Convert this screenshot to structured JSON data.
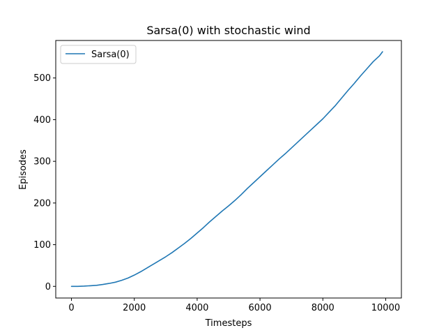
{
  "chart_data": {
    "type": "line",
    "title": "Sarsa(0) with stochastic wind",
    "xlabel": "Timesteps",
    "ylabel": "Episodes",
    "xlim": [
      -500,
      10500
    ],
    "ylim": [
      -28,
      590
    ],
    "xticks": [
      0,
      2000,
      4000,
      6000,
      8000,
      10000
    ],
    "yticks": [
      0,
      100,
      200,
      300,
      400,
      500
    ],
    "grid": false,
    "legend_position": "upper-left",
    "series": [
      {
        "name": "Sarsa(0)",
        "color": "#1f77b4",
        "x": [
          0,
          200,
          400,
          600,
          800,
          1000,
          1200,
          1400,
          1600,
          1800,
          2000,
          2200,
          2400,
          2600,
          2800,
          3000,
          3200,
          3400,
          3600,
          3800,
          4000,
          4200,
          4400,
          4600,
          4800,
          5000,
          5200,
          5400,
          5600,
          5800,
          6000,
          6200,
          6400,
          6600,
          6800,
          7000,
          7200,
          7400,
          7600,
          7800,
          8000,
          8200,
          8400,
          8600,
          8800,
          9000,
          9200,
          9400,
          9600,
          9800,
          9900
        ],
        "y": [
          0,
          0,
          0.5,
          1.5,
          2.5,
          4.5,
          7,
          10,
          14.5,
          20,
          27,
          35,
          44,
          53,
          62,
          71,
          81,
          92,
          103,
          115,
          128,
          141,
          155,
          168,
          181,
          193,
          206,
          220,
          235,
          249,
          263,
          277,
          291,
          305,
          318,
          332,
          346,
          360,
          374,
          388,
          402,
          418,
          434,
          452,
          470,
          487,
          505,
          522,
          539,
          553,
          563
        ]
      }
    ]
  }
}
